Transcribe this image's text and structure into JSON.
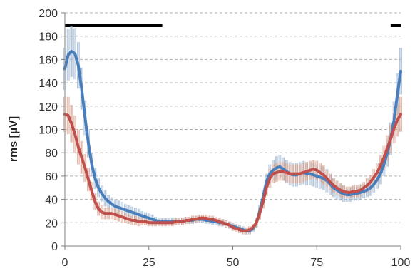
{
  "chart_data": {
    "type": "line",
    "title": "",
    "xlabel": "",
    "ylabel": "rms [µV]",
    "xlim": [
      0,
      100
    ],
    "ylim": [
      0,
      200
    ],
    "x_ticks": [
      0,
      25,
      50,
      75,
      100
    ],
    "y_ticks": [
      0,
      20,
      40,
      60,
      80,
      100,
      120,
      140,
      160,
      180,
      200
    ],
    "grid": "horizontal-dashed",
    "legend": "none",
    "significance_bars": [
      {
        "x_start": 0,
        "x_end": 29,
        "y": 189
      },
      {
        "x_start": 97,
        "x_end": 100,
        "y": 189
      }
    ],
    "series": [
      {
        "color": "#4a7ebb",
        "error_color": "#9ab4d0",
        "x": [
          0,
          1,
          2,
          3,
          4,
          5,
          6,
          7,
          8,
          9,
          10,
          11,
          12,
          13,
          14,
          15,
          16,
          17,
          18,
          19,
          20,
          21,
          22,
          23,
          24,
          25,
          26,
          27,
          28,
          29,
          30,
          31,
          32,
          33,
          34,
          35,
          36,
          37,
          38,
          39,
          40,
          41,
          42,
          43,
          44,
          45,
          46,
          47,
          48,
          49,
          50,
          51,
          52,
          53,
          54,
          55,
          56,
          57,
          58,
          59,
          60,
          61,
          62,
          63,
          64,
          65,
          66,
          67,
          68,
          69,
          70,
          71,
          72,
          73,
          74,
          75,
          76,
          77,
          78,
          79,
          80,
          81,
          82,
          83,
          84,
          85,
          86,
          87,
          88,
          89,
          90,
          91,
          92,
          93,
          94,
          95,
          96,
          97,
          98,
          99,
          100
        ],
        "y": [
          152,
          164,
          167,
          165,
          155,
          135,
          110,
          88,
          70,
          58,
          50,
          45,
          41,
          38,
          36,
          34,
          33,
          32,
          31,
          30,
          29,
          28,
          27,
          26,
          25,
          24,
          23,
          22,
          21,
          21,
          21,
          21,
          21,
          21,
          21,
          21,
          22,
          22,
          22,
          23,
          23,
          23,
          22,
          22,
          21,
          21,
          20,
          20,
          19,
          18,
          17,
          16,
          15,
          14,
          13,
          13,
          15,
          20,
          30,
          42,
          55,
          62,
          65,
          67,
          68,
          66,
          64,
          62,
          61,
          61,
          62,
          63,
          62,
          62,
          61,
          60,
          59,
          58,
          56,
          53,
          50,
          48,
          46,
          45,
          44,
          44,
          45,
          45,
          46,
          47,
          48,
          50,
          53,
          57,
          62,
          70,
          80,
          92,
          108,
          130,
          150
        ],
        "err": [
          18,
          22,
          22,
          22,
          20,
          18,
          15,
          12,
          10,
          9,
          8,
          7,
          7,
          6,
          6,
          6,
          6,
          6,
          5,
          5,
          5,
          5,
          5,
          4,
          4,
          4,
          4,
          3,
          3,
          3,
          3,
          3,
          3,
          3,
          3,
          3,
          3,
          3,
          3,
          3,
          3,
          3,
          3,
          3,
          3,
          3,
          3,
          3,
          3,
          3,
          3,
          3,
          3,
          3,
          3,
          3,
          3,
          4,
          5,
          6,
          7,
          8,
          9,
          10,
          10,
          10,
          10,
          10,
          10,
          10,
          10,
          10,
          10,
          10,
          10,
          10,
          10,
          10,
          10,
          9,
          8,
          8,
          7,
          7,
          6,
          6,
          6,
          6,
          6,
          6,
          6,
          7,
          7,
          8,
          9,
          10,
          12,
          14,
          16,
          18,
          20
        ]
      },
      {
        "color": "#c0504d",
        "error_color": "#d9a08c",
        "x": [
          0,
          1,
          2,
          3,
          4,
          5,
          6,
          7,
          8,
          9,
          10,
          11,
          12,
          13,
          14,
          15,
          16,
          17,
          18,
          19,
          20,
          21,
          22,
          23,
          24,
          25,
          26,
          27,
          28,
          29,
          30,
          31,
          32,
          33,
          34,
          35,
          36,
          37,
          38,
          39,
          40,
          41,
          42,
          43,
          44,
          45,
          46,
          47,
          48,
          49,
          50,
          51,
          52,
          53,
          54,
          55,
          56,
          57,
          58,
          59,
          60,
          61,
          62,
          63,
          64,
          65,
          66,
          67,
          68,
          69,
          70,
          71,
          72,
          73,
          74,
          75,
          76,
          77,
          78,
          79,
          80,
          81,
          82,
          83,
          84,
          85,
          86,
          87,
          88,
          89,
          90,
          91,
          92,
          93,
          94,
          95,
          96,
          97,
          98,
          99,
          100
        ],
        "y": [
          113,
          112,
          105,
          96,
          85,
          76,
          67,
          57,
          47,
          38,
          32,
          29,
          28,
          28,
          28,
          27,
          26,
          25,
          24,
          23,
          22,
          22,
          21,
          21,
          21,
          20,
          20,
          20,
          20,
          20,
          20,
          20,
          20,
          21,
          21,
          21,
          22,
          22,
          23,
          23,
          24,
          24,
          24,
          23,
          23,
          22,
          21,
          20,
          19,
          18,
          16,
          15,
          14,
          13,
          13,
          14,
          16,
          20,
          28,
          38,
          50,
          58,
          62,
          63,
          64,
          64,
          63,
          62,
          62,
          62,
          62,
          63,
          64,
          65,
          66,
          65,
          63,
          61,
          58,
          55,
          52,
          50,
          48,
          47,
          46,
          46,
          47,
          47,
          48,
          50,
          52,
          55,
          59,
          63,
          69,
          76,
          84,
          92,
          101,
          108,
          113
        ],
        "err": [
          15,
          16,
          16,
          16,
          15,
          14,
          12,
          10,
          8,
          7,
          6,
          6,
          5,
          5,
          5,
          5,
          5,
          5,
          4,
          4,
          4,
          4,
          4,
          3,
          3,
          3,
          3,
          3,
          3,
          3,
          3,
          3,
          3,
          3,
          3,
          3,
          3,
          3,
          3,
          3,
          3,
          3,
          3,
          3,
          3,
          3,
          3,
          3,
          3,
          3,
          3,
          3,
          3,
          3,
          3,
          3,
          3,
          4,
          5,
          6,
          7,
          8,
          8,
          8,
          8,
          8,
          8,
          8,
          8,
          8,
          8,
          8,
          8,
          8,
          8,
          8,
          8,
          8,
          7,
          7,
          6,
          6,
          6,
          5,
          5,
          5,
          5,
          5,
          5,
          5,
          6,
          6,
          7,
          8,
          9,
          10,
          11,
          12,
          13,
          14,
          15
        ]
      }
    ]
  }
}
